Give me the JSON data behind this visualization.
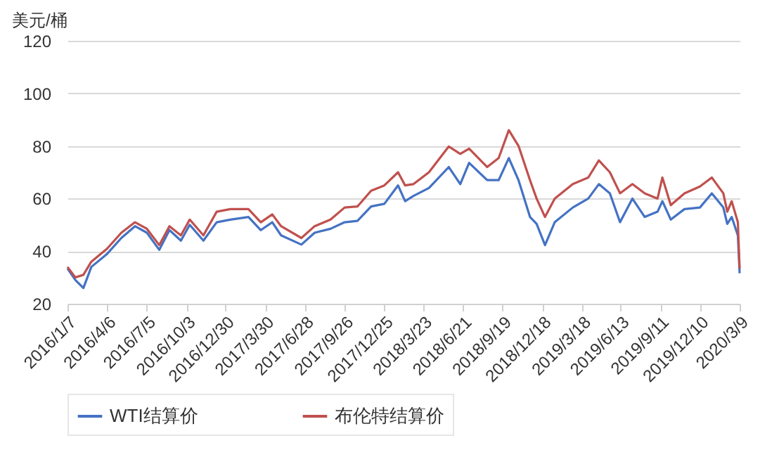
{
  "chart_data": {
    "type": "line",
    "ylabel": "美元/桶",
    "grid": "y",
    "legend": "bottom",
    "ylim": [
      20,
      120
    ],
    "yticks": [
      20,
      40,
      60,
      80,
      100,
      120
    ],
    "xlim": [
      "2016-01-07",
      "2020-03-09"
    ],
    "xticks": [
      {
        "value": "2016-01-07",
        "label": "2016/1/7"
      },
      {
        "value": "2016-04-06",
        "label": "2016/4/6"
      },
      {
        "value": "2016-07-05",
        "label": "2016/7/5"
      },
      {
        "value": "2016-10-03",
        "label": "2016/10/3"
      },
      {
        "value": "2016-12-30",
        "label": "2016/12/30"
      },
      {
        "value": "2017-03-30",
        "label": "2017/3/30"
      },
      {
        "value": "2017-06-28",
        "label": "2017/6/28"
      },
      {
        "value": "2017-09-26",
        "label": "2017/9/26"
      },
      {
        "value": "2017-12-25",
        "label": "2017/12/25"
      },
      {
        "value": "2018-03-23",
        "label": "2018/3/23"
      },
      {
        "value": "2018-06-21",
        "label": "2018/6/21"
      },
      {
        "value": "2018-09-19",
        "label": "2018/9/19"
      },
      {
        "value": "2018-12-18",
        "label": "2018/12/18"
      },
      {
        "value": "2019-03-18",
        "label": "2019/3/18"
      },
      {
        "value": "2019-06-13",
        "label": "2019/6/13"
      },
      {
        "value": "2019-09-11",
        "label": "2019/9/11"
      },
      {
        "value": "2019-12-10",
        "label": "2019/12/10"
      },
      {
        "value": "2020-03-09",
        "label": "2020/3/9"
      }
    ],
    "x": [
      "2016-01-07",
      "2016-01-25",
      "2016-02-12",
      "2016-03-01",
      "2016-04-06",
      "2016-05-08",
      "2016-06-08",
      "2016-07-05",
      "2016-08-02",
      "2016-08-25",
      "2016-09-20",
      "2016-10-10",
      "2016-11-10",
      "2016-12-10",
      "2017-01-10",
      "2017-02-20",
      "2017-03-20",
      "2017-04-15",
      "2017-05-05",
      "2017-06-20",
      "2017-07-20",
      "2017-08-25",
      "2017-09-26",
      "2017-10-25",
      "2017-11-25",
      "2017-12-25",
      "2018-01-25",
      "2018-02-10",
      "2018-03-01",
      "2018-04-05",
      "2018-05-20",
      "2018-06-15",
      "2018-07-05",
      "2018-08-15",
      "2018-09-10",
      "2018-10-03",
      "2018-10-25",
      "2018-11-20",
      "2018-12-05",
      "2018-12-24",
      "2019-01-15",
      "2019-02-25",
      "2019-04-01",
      "2019-04-25",
      "2019-05-20",
      "2019-06-12",
      "2019-07-10",
      "2019-08-07",
      "2019-09-05",
      "2019-09-16",
      "2019-10-05",
      "2019-11-05",
      "2019-12-10",
      "2020-01-06",
      "2020-02-01",
      "2020-02-10",
      "2020-02-20",
      "2020-03-05",
      "2020-03-09"
    ],
    "series": [
      {
        "name": "WTI结算价",
        "color": "#4472c4",
        "values": [
          33.4,
          29,
          26,
          34,
          39,
          45,
          49.5,
          47,
          40.5,
          48,
          44,
          50,
          44,
          51,
          52,
          53,
          48,
          51,
          46,
          42.5,
          47,
          48.5,
          51,
          51.5,
          57,
          58,
          65,
          59,
          61,
          64,
          72,
          65.5,
          73.6,
          67,
          67,
          75.4,
          67,
          53,
          50.4,
          42.3,
          51,
          56.6,
          60,
          65.5,
          62,
          51,
          60,
          53,
          55,
          59,
          52,
          56,
          56.6,
          62,
          56.6,
          50.4,
          53,
          46,
          31.6
        ]
      },
      {
        "name": "布伦特结算价",
        "color": "#c0504d",
        "values": [
          34,
          30,
          31,
          36,
          41,
          47,
          51,
          48.5,
          42.3,
          49.5,
          46,
          52,
          46,
          55,
          56,
          56,
          51,
          54,
          49.5,
          45,
          49.5,
          52,
          56.6,
          57,
          63,
          65,
          70,
          65,
          65.5,
          70,
          79.8,
          77,
          79,
          72,
          75.4,
          86,
          80,
          67,
          60,
          53,
          60,
          65.5,
          68,
          74.5,
          70,
          62,
          65.5,
          62,
          60,
          68,
          57.5,
          62,
          64.6,
          68,
          62,
          55,
          59,
          51,
          33.4
        ]
      }
    ]
  }
}
